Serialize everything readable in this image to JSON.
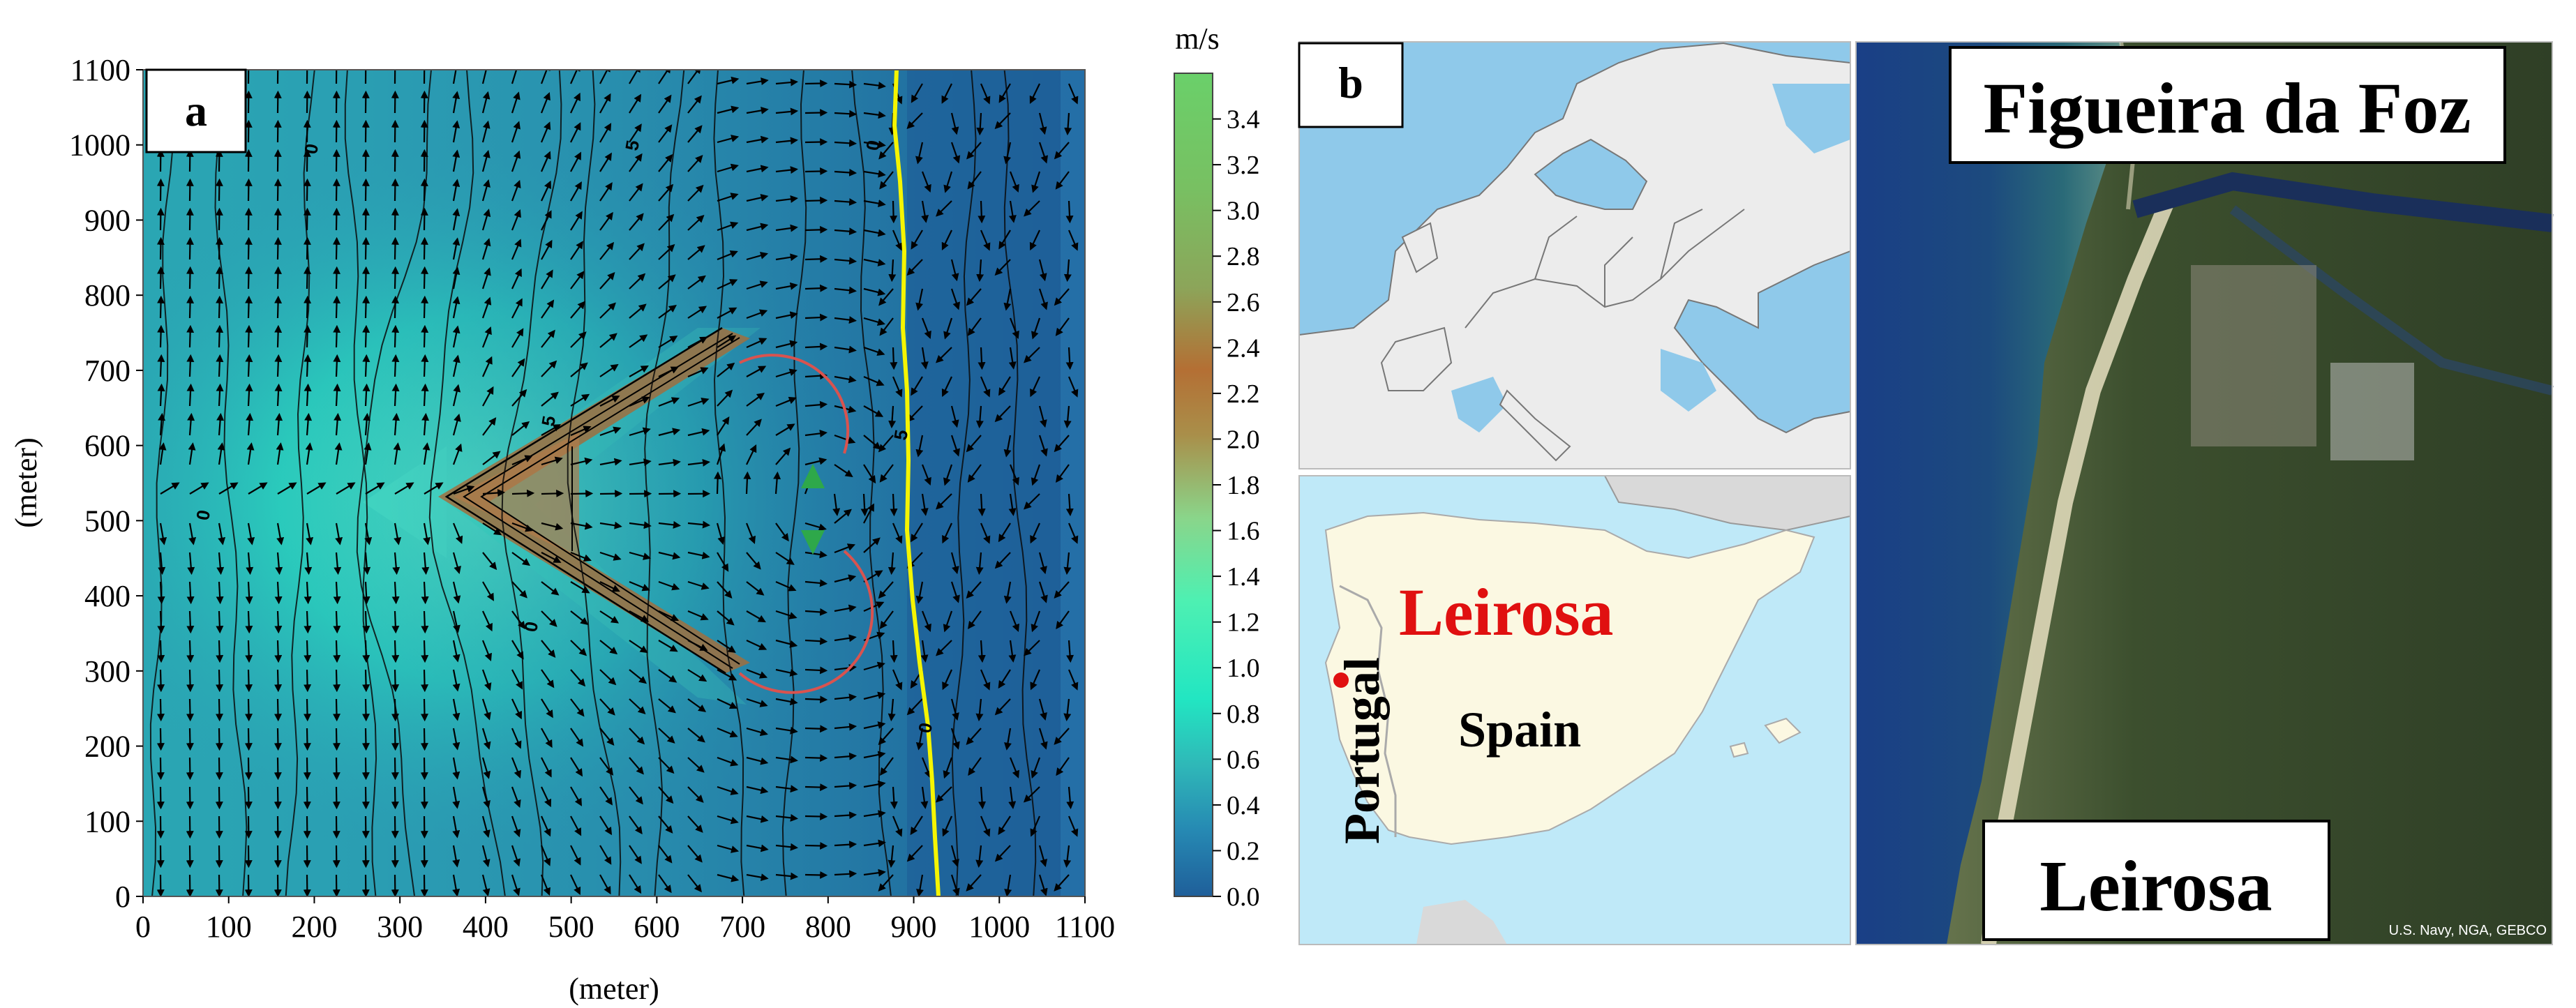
{
  "panel_a": {
    "label": "a",
    "xlabel": "(meter)",
    "ylabel": "(meter)",
    "x_ticks": [
      "0",
      "100",
      "200",
      "300",
      "400",
      "500",
      "600",
      "700",
      "800",
      "900",
      "1000",
      "1100"
    ],
    "y_ticks": [
      "0",
      "100",
      "200",
      "300",
      "400",
      "500",
      "600",
      "700",
      "800",
      "900",
      "1000",
      "1100"
    ],
    "xlim": [
      0,
      1100
    ],
    "ylim": [
      0,
      1100
    ],
    "contour_labels": [
      "0",
      "5",
      "0",
      "0",
      "5",
      "0",
      "5",
      "0"
    ],
    "shoreline_color": "#f5f500",
    "eddy_color": "#d9534f",
    "triangle_color": "#2ea84a"
  },
  "colorbar": {
    "unit": "m/s",
    "ticks": [
      "0.0",
      "0.2",
      "0.4",
      "0.6",
      "0.8",
      "1.0",
      "1.2",
      "1.4",
      "1.6",
      "1.8",
      "2.0",
      "2.2",
      "2.4",
      "2.6",
      "2.8",
      "3.0",
      "3.2",
      "3.4"
    ],
    "range": [
      0.0,
      3.6
    ],
    "colors": [
      "#1f6fa8",
      "#2aa6b0",
      "#28e8c0",
      "#3ff0b0",
      "#9bd27a",
      "#b8743a",
      "#6fc25a"
    ]
  },
  "panel_b": {
    "label": "b",
    "iberia_labels": {
      "portugal": "Portugal",
      "spain": "Spain",
      "leirosa": "Leirosa"
    },
    "leirosa_color": "#e01010",
    "satellite_labels": {
      "top": "Figueira da Foz",
      "bottom": "Leirosa"
    },
    "attribution": "U.S. Navy, NGA, GEBCO"
  }
}
